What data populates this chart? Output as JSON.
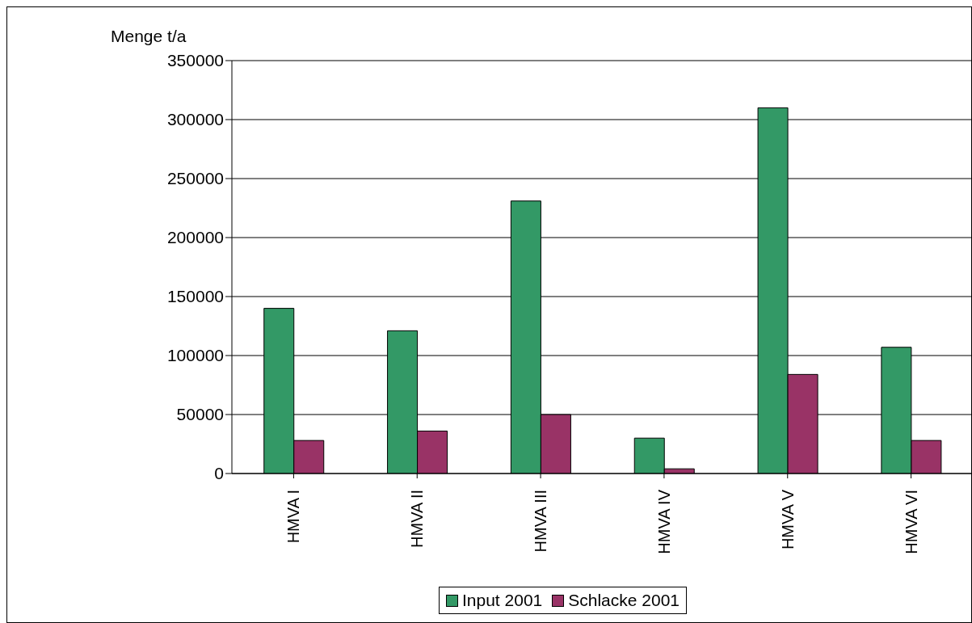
{
  "chart_data": {
    "type": "bar",
    "ylabel": "Menge t/a",
    "categories": [
      "HMVA I",
      "HMVA II",
      "HMVA III",
      "HMVA IV",
      "HMVA V",
      "HMVA VI"
    ],
    "series": [
      {
        "name": "Input 2001",
        "color": "#339966",
        "values": [
          140000,
          121000,
          231000,
          30000,
          310000,
          107000
        ]
      },
      {
        "name": "Schlacke 2001",
        "color": "#993366",
        "values": [
          28000,
          36000,
          50000,
          4000,
          84000,
          28000
        ]
      }
    ],
    "ylim": [
      0,
      350000
    ],
    "yticks": [
      0,
      50000,
      100000,
      150000,
      200000,
      250000,
      300000,
      350000
    ],
    "grid": "y",
    "legend": "bottom"
  }
}
